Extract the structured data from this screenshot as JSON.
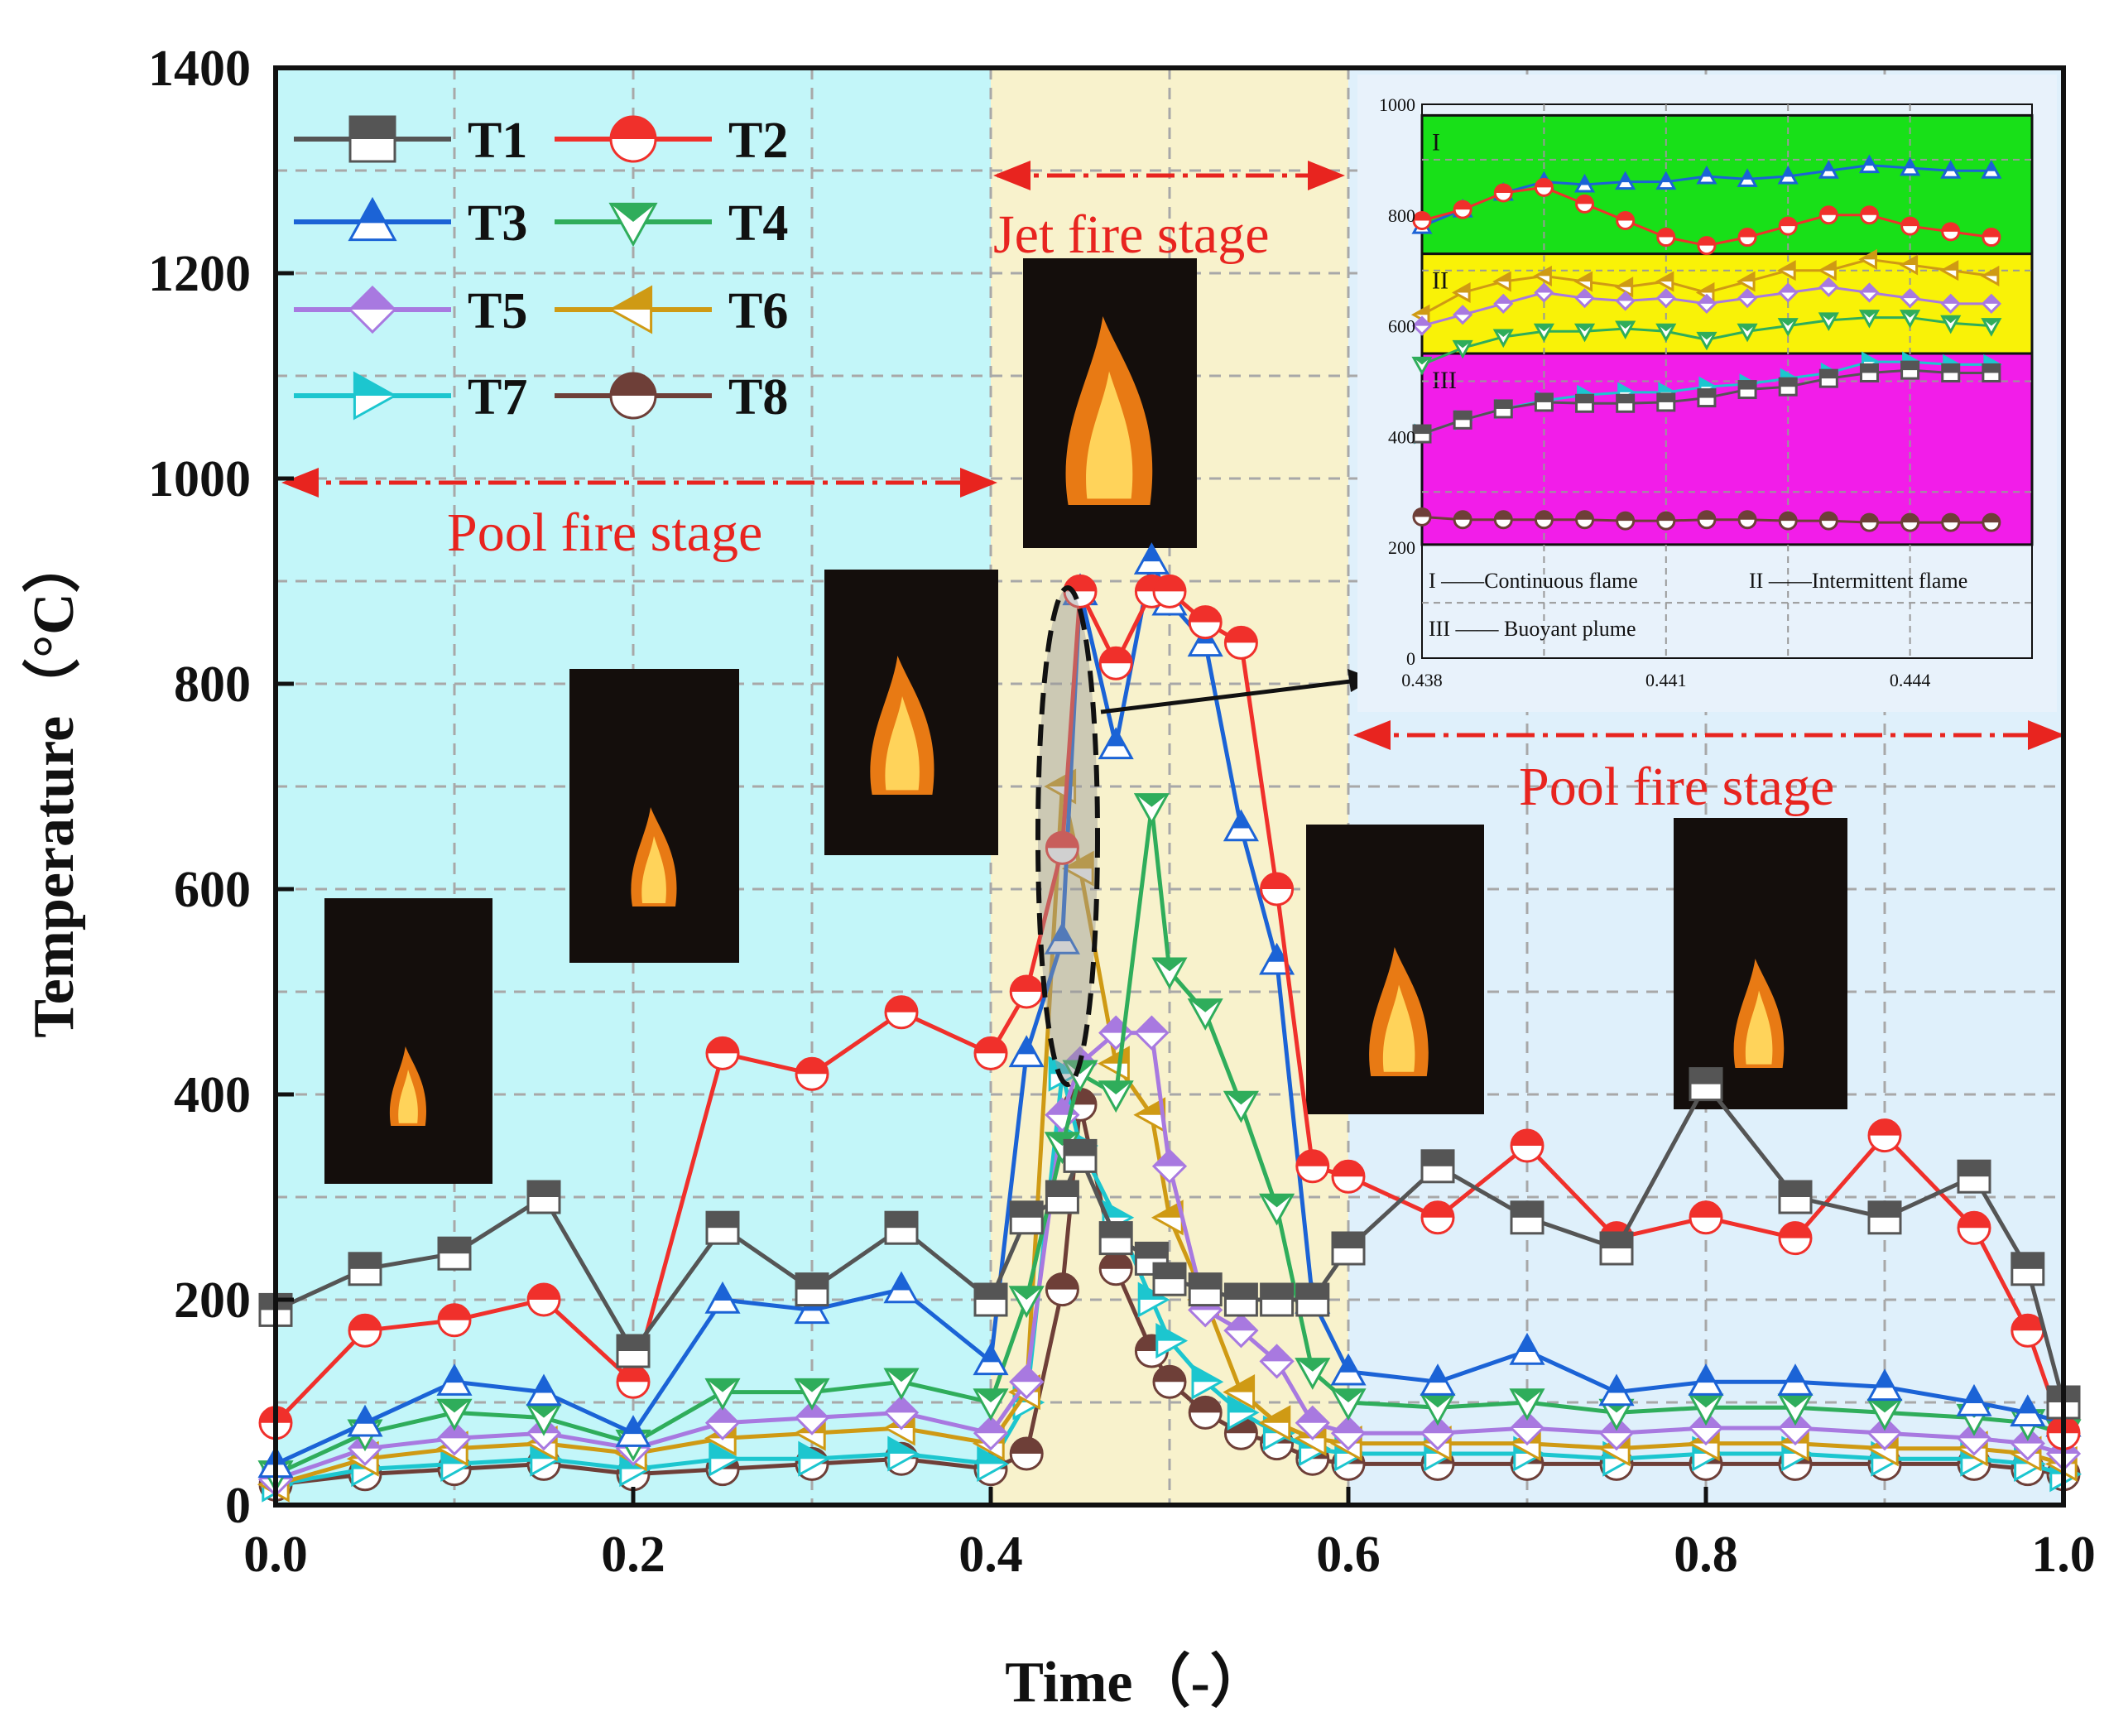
{
  "colors": {
    "pool_bg": "#c3f6f9",
    "jet_bg": "#f8f2cc",
    "right_bg": "#dff0fb",
    "grid": "#a8a8a8",
    "stage_arrow": "#e8241f",
    "zone_I": "#18e018",
    "zone_II": "#f9f207",
    "zone_III": "#f21de9"
  },
  "chart_data": {
    "type": "line",
    "xlabel": "Time（-）",
    "ylabel": "Temperature（°C）",
    "xlim": [
      0.0,
      1.0
    ],
    "ylim": [
      0,
      1400
    ],
    "x_tick_labels": [
      "0.0",
      "0.2",
      "0.4",
      "0.6",
      "0.8",
      "1.0"
    ],
    "y_tick_labels": [
      "0",
      "200",
      "400",
      "600",
      "800",
      "1000",
      "1200",
      "1400"
    ],
    "grid": true,
    "legend_position": "top-left",
    "regions": [
      {
        "label": "Pool fire stage",
        "x": [
          0.0,
          0.4
        ],
        "color": "#c3f6f9"
      },
      {
        "label": "Jet fire stage",
        "x": [
          0.4,
          0.6
        ],
        "color": "#f8f2cc"
      },
      {
        "label": "Pool fire stage",
        "x": [
          0.6,
          1.0
        ],
        "color": "#dff0fb"
      }
    ],
    "stage_labels": [
      "Pool fire stage",
      "Jet fire stage",
      "Pool fire stage"
    ],
    "x": [
      0.0,
      0.05,
      0.1,
      0.15,
      0.2,
      0.25,
      0.3,
      0.35,
      0.4,
      0.42,
      0.44,
      0.45,
      0.47,
      0.49,
      0.5,
      0.52,
      0.54,
      0.56,
      0.58,
      0.6,
      0.65,
      0.7,
      0.75,
      0.8,
      0.85,
      0.9,
      0.95,
      0.98,
      1.0
    ],
    "series": [
      {
        "name": "T1",
        "color": "#555555",
        "marker": "square-half",
        "values": [
          190,
          230,
          245,
          300,
          150,
          270,
          210,
          270,
          200,
          280,
          300,
          340,
          260,
          240,
          220,
          210,
          200,
          200,
          200,
          250,
          330,
          280,
          250,
          410,
          300,
          280,
          320,
          230,
          100
        ]
      },
      {
        "name": "T2",
        "color": "#f0302b",
        "marker": "circle-half",
        "values": [
          80,
          170,
          180,
          200,
          120,
          440,
          420,
          480,
          440,
          500,
          640,
          890,
          820,
          890,
          890,
          860,
          840,
          600,
          330,
          320,
          280,
          350,
          260,
          280,
          260,
          360,
          270,
          170,
          70
        ]
      },
      {
        "name": "T3",
        "color": "#1b63d6",
        "marker": "triangle-up",
        "values": [
          40,
          80,
          120,
          110,
          70,
          200,
          190,
          210,
          140,
          440,
          550,
          890,
          740,
          920,
          880,
          840,
          660,
          530,
          200,
          130,
          120,
          150,
          110,
          120,
          120,
          115,
          100,
          90,
          80
        ]
      },
      {
        "name": "T4",
        "color": "#2fad5b",
        "marker": "triangle-down",
        "values": [
          30,
          70,
          90,
          85,
          60,
          110,
          110,
          120,
          100,
          200,
          350,
          420,
          400,
          680,
          520,
          480,
          390,
          290,
          130,
          100,
          95,
          100,
          90,
          95,
          95,
          90,
          85,
          80,
          70
        ]
      },
      {
        "name": "T5",
        "color": "#a879e0",
        "marker": "diamond",
        "values": [
          25,
          55,
          65,
          70,
          55,
          80,
          85,
          90,
          70,
          120,
          380,
          430,
          460,
          460,
          330,
          190,
          170,
          140,
          80,
          70,
          70,
          75,
          70,
          75,
          75,
          70,
          65,
          60,
          50
        ]
      },
      {
        "name": "T6",
        "color": "#cf9a14",
        "marker": "triangle-left",
        "values": [
          20,
          45,
          55,
          60,
          50,
          65,
          70,
          75,
          60,
          110,
          700,
          620,
          430,
          380,
          280,
          200,
          110,
          80,
          65,
          60,
          60,
          60,
          55,
          60,
          60,
          55,
          55,
          50,
          40
        ]
      },
      {
        "name": "T7",
        "color": "#1cc6cf",
        "marker": "triangle-right",
        "values": [
          20,
          35,
          40,
          45,
          35,
          45,
          45,
          50,
          40,
          100,
          420,
          350,
          280,
          200,
          160,
          120,
          90,
          70,
          55,
          50,
          50,
          50,
          45,
          50,
          50,
          45,
          45,
          40,
          30
        ]
      },
      {
        "name": "T8",
        "color": "#6e3f38",
        "marker": "circle-half-bottom",
        "values": [
          20,
          30,
          35,
          40,
          30,
          35,
          40,
          45,
          35,
          50,
          210,
          390,
          230,
          150,
          120,
          90,
          70,
          60,
          45,
          40,
          40,
          40,
          40,
          40,
          40,
          40,
          40,
          35,
          30
        ]
      }
    ],
    "inset": {
      "type": "line",
      "xlim": [
        0.438,
        0.4455
      ],
      "ylim": [
        0,
        1000
      ],
      "x_tick_labels": [
        "0.438",
        "0.441",
        "0.444"
      ],
      "y_tick_labels": [
        "0",
        "200",
        "400",
        "600",
        "800",
        "1000"
      ],
      "zones": [
        {
          "label": "I",
          "range": [
            730,
            980
          ],
          "color": "#18e018"
        },
        {
          "label": "II",
          "range": [
            550,
            730
          ],
          "color": "#f9f207"
        },
        {
          "label": "III",
          "range": [
            205,
            550
          ],
          "color": "#f21de9"
        }
      ],
      "notes": [
        "I ——Continuous flame",
        "II ——Intermittent flame",
        "III —— Buoyant plume"
      ],
      "x": [
        0.438,
        0.4385,
        0.439,
        0.4395,
        0.44,
        0.4405,
        0.441,
        0.4415,
        0.442,
        0.4425,
        0.443,
        0.4435,
        0.444,
        0.4445,
        0.445
      ],
      "series": [
        {
          "name": "T3",
          "values": [
            780,
            810,
            840,
            860,
            855,
            860,
            860,
            870,
            865,
            870,
            880,
            890,
            885,
            880,
            880
          ]
        },
        {
          "name": "T2",
          "values": [
            790,
            810,
            840,
            850,
            820,
            790,
            760,
            745,
            760,
            780,
            800,
            800,
            780,
            770,
            760
          ]
        },
        {
          "name": "T6",
          "values": [
            620,
            660,
            680,
            690,
            680,
            670,
            680,
            660,
            680,
            700,
            700,
            720,
            710,
            700,
            690
          ]
        },
        {
          "name": "T5",
          "values": [
            600,
            620,
            640,
            660,
            650,
            645,
            650,
            640,
            650,
            660,
            670,
            660,
            650,
            640,
            640
          ]
        },
        {
          "name": "T4",
          "values": [
            530,
            560,
            580,
            590,
            590,
            595,
            590,
            575,
            590,
            600,
            610,
            615,
            615,
            605,
            600
          ]
        },
        {
          "name": "T7",
          "values": [
            405,
            430,
            450,
            465,
            475,
            480,
            480,
            490,
            495,
            505,
            515,
            535,
            535,
            530,
            530
          ]
        },
        {
          "name": "T1",
          "values": [
            405,
            430,
            450,
            462,
            460,
            460,
            462,
            470,
            485,
            490,
            505,
            515,
            520,
            515,
            515
          ]
        },
        {
          "name": "T8",
          "values": [
            255,
            250,
            250,
            250,
            250,
            248,
            248,
            250,
            250,
            248,
            248,
            245,
            245,
            245,
            245
          ]
        }
      ]
    }
  }
}
